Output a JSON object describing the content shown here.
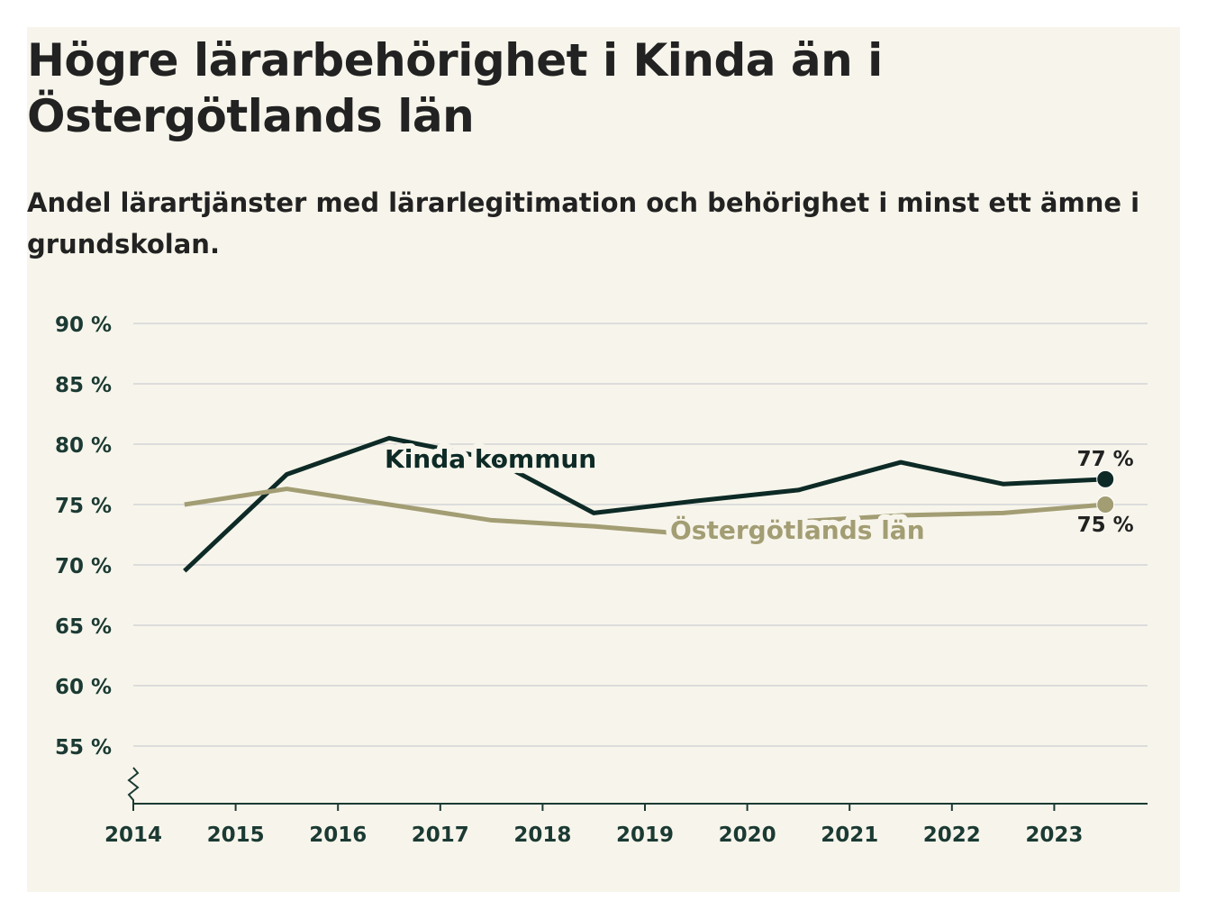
{
  "title": "Högre lärarbehörighet i Kinda än i Östergötlands län",
  "subtitle": "Andel lärartjänster med lärarlegitimation och behörighet i minst ett ämne i grundskolan.",
  "colors": {
    "background": "#f7f5eb",
    "kinda": "#0d2a26",
    "lan": "#a39d74",
    "grid": "#dcdcdc",
    "axis": "#1b3a33",
    "text": "#222222"
  },
  "chart_data": {
    "type": "line",
    "x": [
      "2014",
      "2015",
      "2016",
      "2017",
      "2018",
      "2019",
      "2020",
      "2021",
      "2022",
      "2023"
    ],
    "xlim": [
      2014,
      2024
    ],
    "ylim": [
      50,
      90
    ],
    "yticks": [
      55,
      60,
      65,
      70,
      75,
      80,
      85,
      90
    ],
    "ytick_labels": [
      "55 %",
      "60 %",
      "65 %",
      "70 %",
      "75 %",
      "80 %",
      "85 %",
      "90 %"
    ],
    "axis_break": true,
    "grid": true,
    "series": [
      {
        "name": "Kinda kommun",
        "key": "kinda",
        "x": [
          2014.5,
          2015.5,
          2016.5,
          2017.5,
          2018.5,
          2019.5,
          2020.5,
          2021.5,
          2022.5,
          2023.5
        ],
        "values": [
          69.5,
          77.5,
          80.5,
          78.8,
          74.3,
          75.3,
          76.2,
          78.5,
          76.7,
          77.1
        ],
        "end_label": "77 %"
      },
      {
        "name": "Östergötlands län",
        "key": "lan",
        "x": [
          2014.5,
          2015.5,
          2016.5,
          2017.5,
          2018.5,
          2019.5,
          2020.5,
          2021.5,
          2022.5,
          2023.5
        ],
        "values": [
          75.0,
          76.3,
          75.0,
          73.7,
          73.2,
          72.5,
          73.6,
          74.1,
          74.3,
          75.0
        ],
        "end_label": "75 %"
      }
    ]
  }
}
